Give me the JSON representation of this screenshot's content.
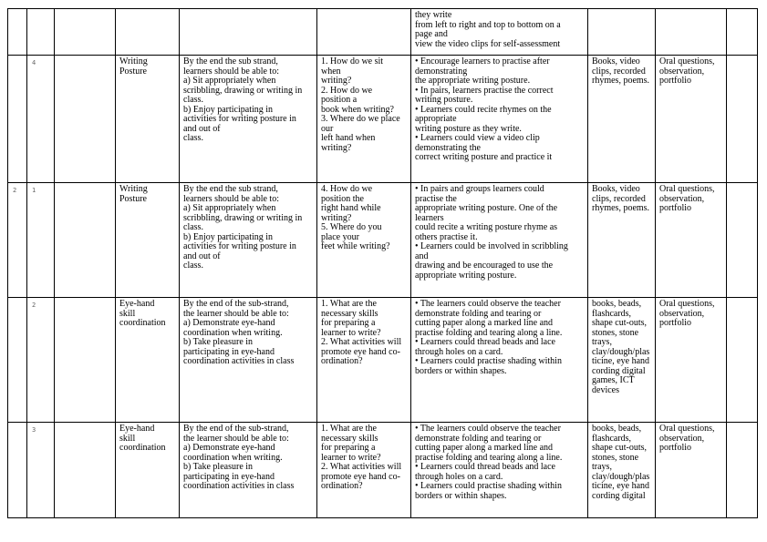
{
  "rows": [
    {
      "week": "",
      "lesson": "",
      "strand": "",
      "sub_strand": "",
      "outcomes": "",
      "questions": "",
      "experiences": "they write\nfrom left to right and top to bottom on a\npage and\nview the video clips for self-assessment",
      "resources": "",
      "assessment": "",
      "remarks": ""
    },
    {
      "week": "",
      "lesson": "4",
      "strand": "",
      "sub_strand": "Writing\nPosture",
      "outcomes": "By the end the sub strand,\nlearners should be able to:\na) Sit appropriately when\nscribbling, drawing or writing in\nclass.\nb) Enjoy participating in\nactivities for writing posture in\nand out of\nclass.",
      "questions": "1. How do we sit\nwhen\nwriting?\n2. How do we\nposition a\nbook when writing?\n3. Where do we place\nour\nleft hand when\nwriting?",
      "experiences": "• Encourage learners to practise after\ndemonstrating\nthe appropriate writing posture.\n• In pairs, learners practise the correct\nwriting posture.\n• Learners could recite rhymes on the\nappropriate\nwriting posture as they write.\n• Learners could view a video clip\ndemonstrating the\ncorrect writing posture and practice it",
      "resources": "Books, video\nclips, recorded\nrhymes, poems.",
      "assessment": "Oral questions,\nobservation,\nportfolio",
      "remarks": ""
    },
    {
      "week": "2",
      "lesson": "1",
      "strand": "",
      "sub_strand": "Writing\nPosture",
      "outcomes": "By the end the sub strand,\nlearners should be able to:\na) Sit appropriately when\nscribbling, drawing or writing in\nclass.\nb) Enjoy participating in\nactivities for writing posture in\nand out of\nclass.",
      "questions": "4. How do we\nposition the\nright hand while\nwriting?\n5. Where do you\nplace your\nfeet while writing?",
      "experiences": "• In pairs and groups learners could\npractise the\nappropriate writing posture. One of the\nlearners\ncould recite a writing posture rhyme as\nothers practise it.\n• Learners could be involved in scribbling\nand\ndrawing and be encouraged to use the\nappropriate writing posture.",
      "resources": "Books, video\nclips, recorded\nrhymes, poems.",
      "assessment": "Oral questions,\nobservation,\nportfolio",
      "remarks": ""
    },
    {
      "week": "",
      "lesson": "2",
      "strand": "",
      "sub_strand": "Eye-hand\nskill\ncoordination",
      "outcomes": "By the end of the sub-strand,\nthe learner should be able to:\na) Demonstrate eye-hand\ncoordination when writing.\nb) Take pleasure in\nparticipating in eye-hand\ncoordination activities in class",
      "questions": "1. What are the\nnecessary skills\nfor preparing a\nlearner to write?\n2. What activities will\npromote eye hand co-\nordination?",
      "experiences": "• The learners could observe the teacher\ndemonstrate folding and tearing or\ncutting paper along a marked line and\npractise folding and tearing along a line.\n• Learners could thread beads and lace\nthrough holes on a card.\n• Learners could practise shading within\nborders or within shapes.",
      "resources": "books, beads,\nflashcards,\nshape cut-outs,\nstones, stone\ntrays,\nclay/dough/plas\nticine, eye hand\ncording digital\ngames, ICT\ndevices",
      "assessment": "Oral questions,\nobservation,\nportfolio",
      "remarks": ""
    },
    {
      "week": "",
      "lesson": "3",
      "strand": "",
      "sub_strand": "Eye-hand\nskill\ncoordination",
      "outcomes": "By the end of the sub-strand,\nthe learner should be able to:\na) Demonstrate eye-hand\ncoordination when writing.\nb) Take pleasure in\nparticipating in eye-hand\ncoordination activities in class",
      "questions": "1. What are the\nnecessary skills\nfor preparing a\nlearner to write?\n2. What activities will\npromote eye hand co-\nordination?",
      "experiences": "• The learners could observe the teacher\ndemonstrate folding and tearing or\ncutting paper along a marked line and\npractise folding and tearing along a line.\n• Learners could thread beads and lace\nthrough holes on a card.\n• Learners could practise shading within\nborders or within shapes.",
      "resources": "books, beads,\nflashcards,\nshape cut-outs,\nstones, stone\ntrays,\nclay/dough/plas\nticine, eye hand\ncording digital",
      "assessment": "Oral questions,\nobservation,\nportfolio",
      "remarks": ""
    }
  ]
}
